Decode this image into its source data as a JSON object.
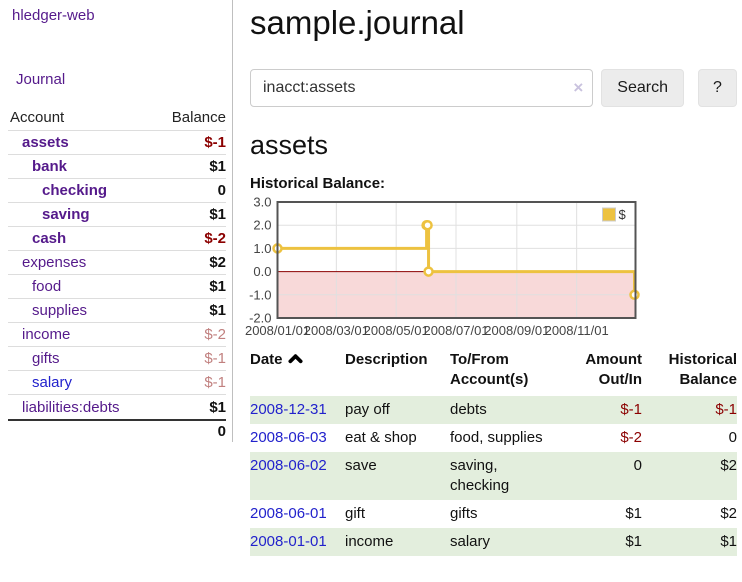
{
  "app": {
    "brand": "hledger-web",
    "nav": {
      "journal": "Journal"
    }
  },
  "colors": {
    "link_purple": "#551a8b",
    "link_blue": "#2222cc",
    "negative_strong": "#8b0000",
    "negative_soft": "#c1807f",
    "row_shade_green": "#e3eedd",
    "series_yellow": "#edc240",
    "negative_region_pink": "#f8d9d9"
  },
  "sidebar": {
    "header": {
      "account": "Account",
      "balance": "Balance"
    },
    "rows": [
      {
        "label": "assets",
        "indent": 0,
        "bold": true,
        "link_color": "purple",
        "balance": "$-1",
        "balance_style": "neg"
      },
      {
        "label": "bank",
        "indent": 1,
        "bold": true,
        "link_color": "purple",
        "balance": "$1",
        "balance_style": "pos"
      },
      {
        "label": "checking",
        "indent": 2,
        "bold": true,
        "link_color": "purple",
        "balance": "0",
        "balance_style": "pos"
      },
      {
        "label": "saving",
        "indent": 2,
        "bold": true,
        "link_color": "purple",
        "balance": "$1",
        "balance_style": "pos"
      },
      {
        "label": "cash",
        "indent": 1,
        "bold": true,
        "link_color": "purple",
        "balance": "$-2",
        "balance_style": "neg"
      },
      {
        "label": "expenses",
        "indent": 0,
        "bold": false,
        "link_color": "purple",
        "balance": "$2",
        "balance_style": "pos"
      },
      {
        "label": "food",
        "indent": 1,
        "bold": false,
        "link_color": "purple",
        "balance": "$1",
        "balance_style": "pos"
      },
      {
        "label": "supplies",
        "indent": 1,
        "bold": false,
        "link_color": "purple",
        "balance": "$1",
        "balance_style": "pos"
      },
      {
        "label": "income",
        "indent": 0,
        "bold": false,
        "link_color": "purple",
        "balance": "$-2",
        "balance_style": "negsoft"
      },
      {
        "label": "gifts",
        "indent": 1,
        "bold": false,
        "link_color": "purple",
        "balance": "$-1",
        "balance_style": "negsoft"
      },
      {
        "label": "salary",
        "indent": 1,
        "bold": false,
        "link_color": "blue",
        "balance": "$-1",
        "balance_style": "negsoft"
      },
      {
        "label": "liabilities:debts",
        "indent": 0,
        "bold": false,
        "link_color": "purple",
        "balance": "$1",
        "balance_style": "pos"
      }
    ],
    "total": "0"
  },
  "main": {
    "title": "sample.journal",
    "search": {
      "value": "inacct:assets",
      "clear_icon": "×",
      "button_label": "Search",
      "help_label": "?"
    },
    "heading": "assets",
    "chart_label": "Historical Balance:"
  },
  "chart_data": {
    "type": "line",
    "step": true,
    "title": "Historical Balance:",
    "x_range": [
      "2008-01-01",
      "2008-12-31"
    ],
    "ylim": [
      -2,
      3
    ],
    "grid": true,
    "legend_position": "top-right",
    "negative_region_color": "#f8d9d9",
    "zero_line_color": "#8b0000",
    "yticks": [
      {
        "value": 3,
        "label": "3.0"
      },
      {
        "value": 2,
        "label": "2.0"
      },
      {
        "value": 1,
        "label": "1.0"
      },
      {
        "value": 0,
        "label": "0.0"
      },
      {
        "value": -1,
        "label": "-1.0"
      },
      {
        "value": -2,
        "label": "-2.0"
      }
    ],
    "xticks": [
      {
        "date": "2008-01-01",
        "label": "2008/01/01"
      },
      {
        "date": "2008-03-01",
        "label": "2008/03/01"
      },
      {
        "date": "2008-05-01",
        "label": "2008/05/01"
      },
      {
        "date": "2008-07-01",
        "label": "2008/07/01"
      },
      {
        "date": "2008-09-01",
        "label": "2008/09/01"
      },
      {
        "date": "2008-11-01",
        "label": "2008/11/01"
      }
    ],
    "series": [
      {
        "name": "$",
        "color": "#edc240",
        "points": [
          {
            "date": "2008-01-01",
            "value": 1
          },
          {
            "date": "2008-06-01",
            "value": 2
          },
          {
            "date": "2008-06-02",
            "value": 2
          },
          {
            "date": "2008-06-03",
            "value": 0
          },
          {
            "date": "2008-12-31",
            "value": -1
          }
        ]
      }
    ]
  },
  "table": {
    "headers": {
      "date": "Date",
      "description": "Description",
      "accounts_l1": "To/From",
      "accounts_l2": "Account(s)",
      "amount_l1": "Amount",
      "amount_l2": "Out/In",
      "balance_l1": "Historical",
      "balance_l2": "Balance"
    },
    "rows": [
      {
        "date": "2008-12-31",
        "description": "pay off",
        "accounts": "debts",
        "amount": "$-1",
        "amount_neg": true,
        "balance": "$-1",
        "balance_neg": true,
        "shaded": true
      },
      {
        "date": "2008-06-03",
        "description": "eat & shop",
        "accounts": "food, supplies",
        "amount": "$-2",
        "amount_neg": true,
        "balance": "0",
        "balance_neg": false,
        "shaded": false
      },
      {
        "date": "2008-06-02",
        "description": "save",
        "accounts": "saving, checking",
        "amount": "0",
        "amount_neg": false,
        "balance": "$2",
        "balance_neg": false,
        "shaded": true
      },
      {
        "date": "2008-06-01",
        "description": "gift",
        "accounts": "gifts",
        "amount": "$1",
        "amount_neg": false,
        "balance": "$2",
        "balance_neg": false,
        "shaded": false
      },
      {
        "date": "2008-01-01",
        "description": "income",
        "accounts": "salary",
        "amount": "$1",
        "amount_neg": false,
        "balance": "$1",
        "balance_neg": false,
        "shaded": true
      }
    ]
  }
}
